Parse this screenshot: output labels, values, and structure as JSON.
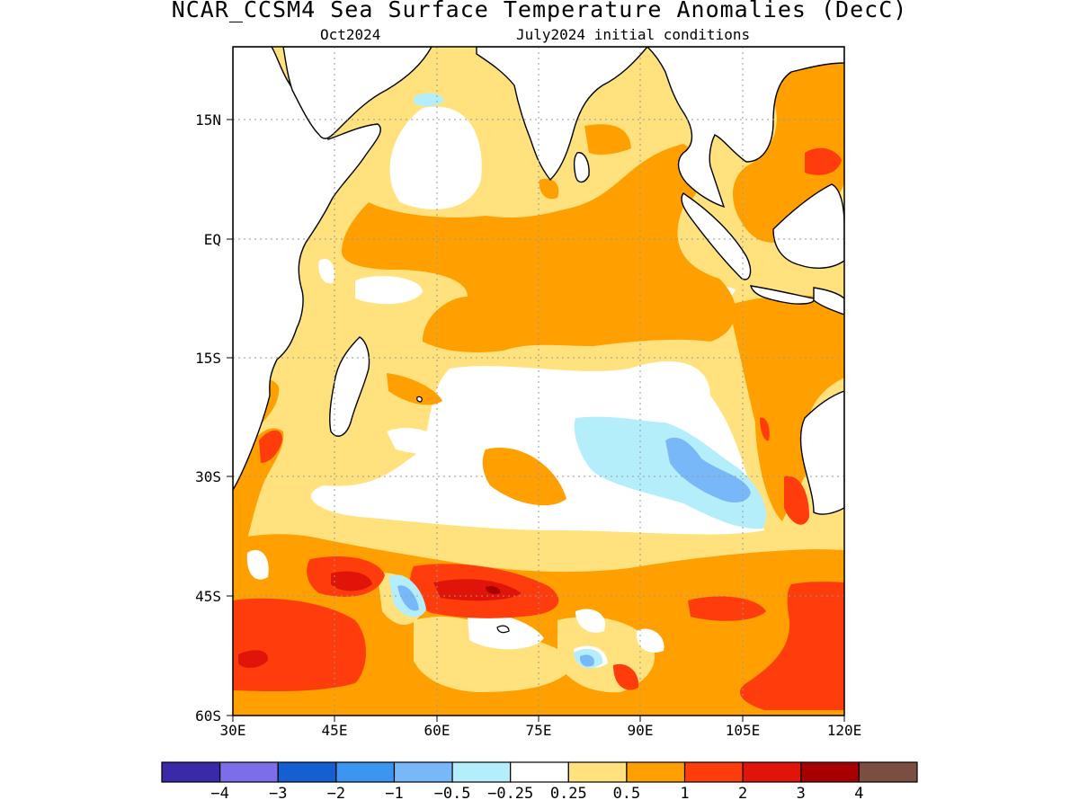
{
  "title": "NCAR_CCSM4 Sea Surface Temperature Anomalies (DecC)",
  "subtitle_left": "Oct2024",
  "subtitle_right": "July2024 initial conditions",
  "map": {
    "lon_range": [
      30,
      120
    ],
    "lat_range": [
      -60,
      21
    ],
    "lat_ticks": [
      {
        "lat": 15,
        "label": "15N"
      },
      {
        "lat": 0,
        "label": "EQ"
      },
      {
        "lat": -15,
        "label": "15S"
      },
      {
        "lat": -30,
        "label": "30S"
      },
      {
        "lat": -45,
        "label": "45S"
      },
      {
        "lat": -60,
        "label": "60S"
      }
    ],
    "lon_ticks": [
      {
        "lon": 30,
        "label": "30E"
      },
      {
        "lon": 45,
        "label": "45E"
      },
      {
        "lon": 60,
        "label": "60E"
      },
      {
        "lon": 75,
        "label": "75E"
      },
      {
        "lon": 90,
        "label": "90E"
      },
      {
        "lon": 105,
        "label": "105E"
      },
      {
        "lon": 120,
        "label": "120E"
      }
    ]
  },
  "colorbar": {
    "colors": [
      "#3a2aa8",
      "#7b6ee8",
      "#1560d0",
      "#3c96f0",
      "#78b8f8",
      "#b4eefa",
      "#ffffff",
      "#ffe27e",
      "#ffa000",
      "#ff3c0c",
      "#e01408",
      "#a80000",
      "#7a4e40"
    ],
    "labels": [
      "−4",
      "−3",
      "−2",
      "−1",
      "−0.5",
      "−0.25",
      "0.25",
      "0.5",
      "1",
      "2",
      "3",
      "4"
    ]
  }
}
